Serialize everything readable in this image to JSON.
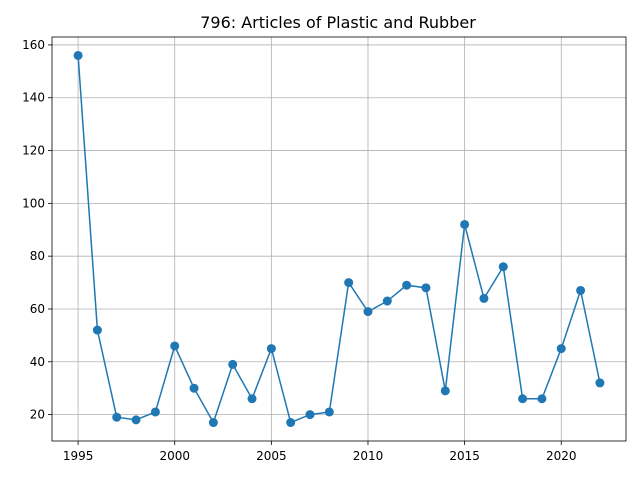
{
  "chart_data": {
    "type": "line",
    "title": "796: Articles of Plastic and Rubber",
    "xlabel": "",
    "ylabel": "",
    "x": [
      1995,
      1996,
      1997,
      1998,
      1999,
      2000,
      2001,
      2002,
      2003,
      2004,
      2005,
      2006,
      2007,
      2008,
      2009,
      2010,
      2011,
      2012,
      2013,
      2014,
      2015,
      2016,
      2017,
      2018,
      2019,
      2020,
      2021,
      2022
    ],
    "values": [
      156,
      52,
      19,
      18,
      21,
      46,
      30,
      17,
      39,
      26,
      45,
      17,
      20,
      21,
      70,
      59,
      63,
      69,
      68,
      29,
      92,
      64,
      76,
      26,
      26,
      45,
      67,
      32
    ],
    "xlim": [
      1993.65,
      2023.35
    ],
    "ylim": [
      10,
      163
    ],
    "xticks": [
      1995,
      2000,
      2005,
      2010,
      2015,
      2020
    ],
    "yticks": [
      20,
      40,
      60,
      80,
      100,
      120,
      140,
      160
    ],
    "grid": true,
    "line_color": "#1f77b4",
    "marker": "circle"
  }
}
